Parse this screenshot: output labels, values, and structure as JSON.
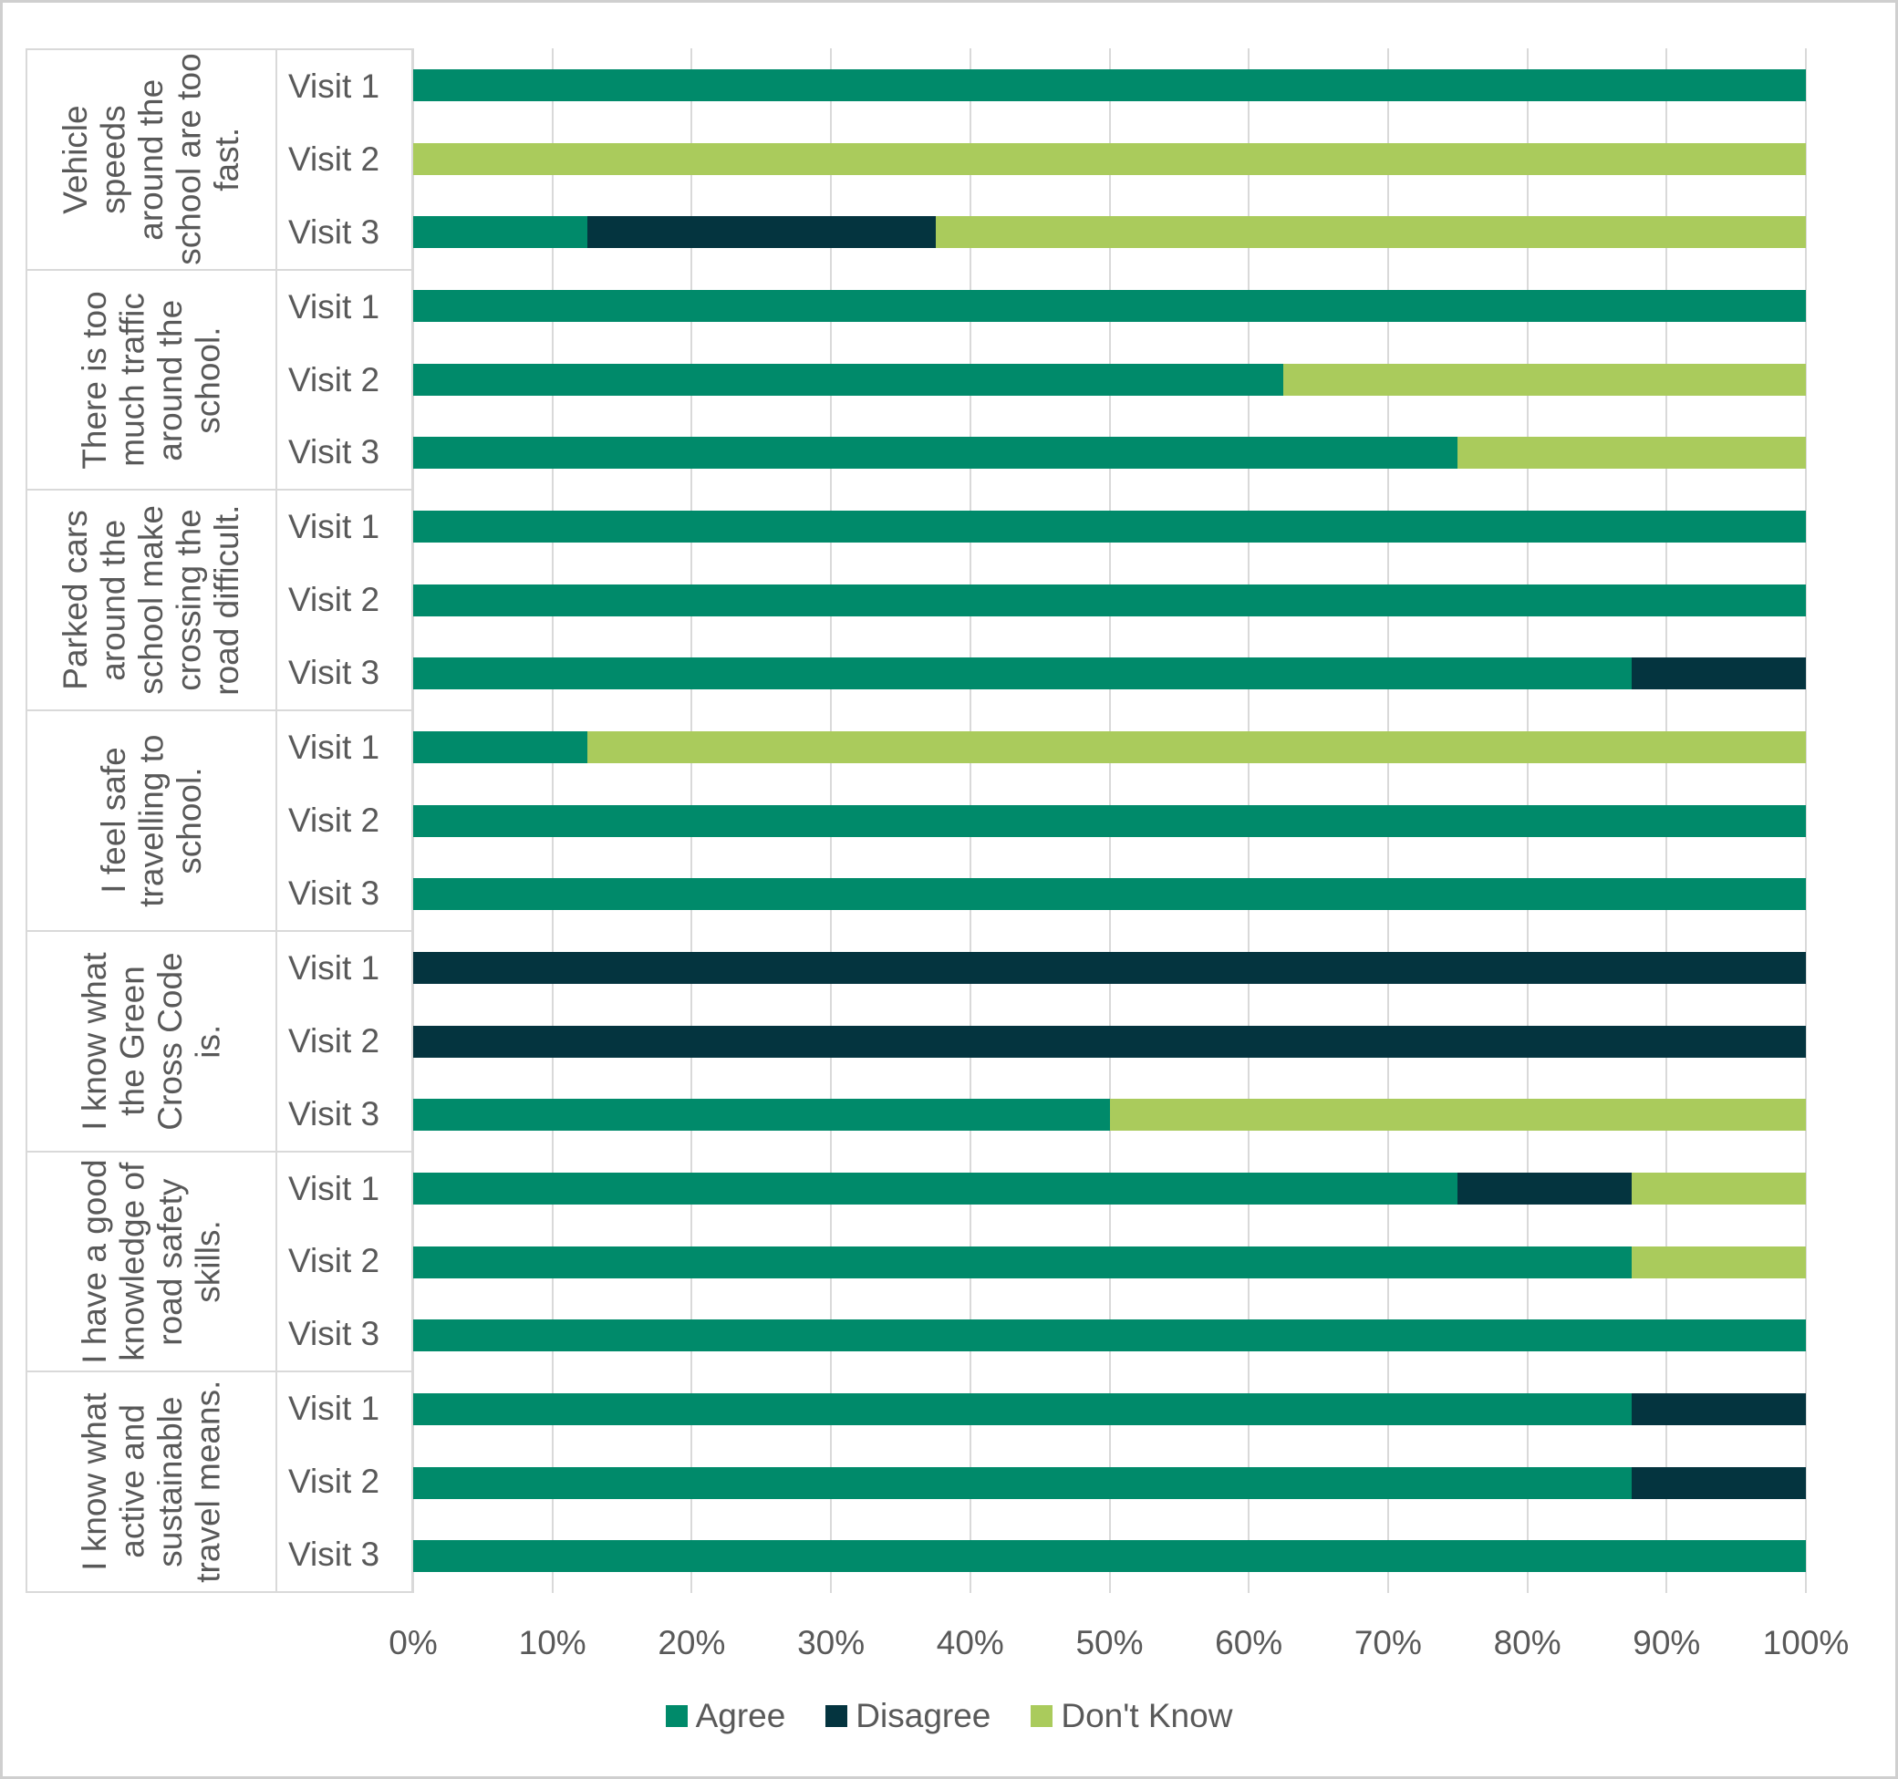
{
  "colors": {
    "agree": "#008A6A",
    "disagree": "#04343F",
    "dont_know": "#AACB5C",
    "grid": "#D9D9D9",
    "text": "#595959"
  },
  "legend": [
    {
      "key": "agree",
      "label": "Agree"
    },
    {
      "key": "disagree",
      "label": "Disagree"
    },
    {
      "key": "dont_know",
      "label": "Don't Know"
    }
  ],
  "x_axis": {
    "ticks": [
      "0%",
      "10%",
      "20%",
      "30%",
      "40%",
      "50%",
      "60%",
      "70%",
      "80%",
      "90%",
      "100%"
    ],
    "min": 0,
    "max": 100
  },
  "chart_data": {
    "type": "bar",
    "stacked": true,
    "orientation": "horizontal",
    "units": "percent",
    "series_names": [
      "Agree",
      "Disagree",
      "Don't Know"
    ],
    "xlim": [
      0,
      100
    ],
    "grid": true,
    "legend_position": "bottom",
    "groups": [
      {
        "label": "Vehicle speeds around the school are too fast.",
        "rows": [
          {
            "visit": "Visit 1",
            "agree": 100,
            "disagree": 0,
            "dont_know": 0
          },
          {
            "visit": "Visit 2",
            "agree": 0,
            "disagree": 0,
            "dont_know": 100
          },
          {
            "visit": "Visit 3",
            "agree": 12.5,
            "disagree": 25,
            "dont_know": 62.5
          }
        ]
      },
      {
        "label": "There is too much traffic around the school.",
        "rows": [
          {
            "visit": "Visit 1",
            "agree": 100,
            "disagree": 0,
            "dont_know": 0
          },
          {
            "visit": "Visit 2",
            "agree": 62.5,
            "disagree": 0,
            "dont_know": 37.5
          },
          {
            "visit": "Visit 3",
            "agree": 75,
            "disagree": 0,
            "dont_know": 25
          }
        ]
      },
      {
        "label": "Parked cars around the school make crossing the road difficult.",
        "rows": [
          {
            "visit": "Visit 1",
            "agree": 100,
            "disagree": 0,
            "dont_know": 0
          },
          {
            "visit": "Visit 2",
            "agree": 100,
            "disagree": 0,
            "dont_know": 0
          },
          {
            "visit": "Visit 3",
            "agree": 87.5,
            "disagree": 12.5,
            "dont_know": 0
          }
        ]
      },
      {
        "label": "I feel safe travelling to school.",
        "rows": [
          {
            "visit": "Visit 1",
            "agree": 12.5,
            "disagree": 0,
            "dont_know": 87.5
          },
          {
            "visit": "Visit 2",
            "agree": 100,
            "disagree": 0,
            "dont_know": 0
          },
          {
            "visit": "Visit 3",
            "agree": 100,
            "disagree": 0,
            "dont_know": 0
          }
        ]
      },
      {
        "label": "I know what the Green Cross Code is.",
        "rows": [
          {
            "visit": "Visit 1",
            "agree": 0,
            "disagree": 100,
            "dont_know": 0
          },
          {
            "visit": "Visit 2",
            "agree": 0,
            "disagree": 100,
            "dont_know": 0
          },
          {
            "visit": "Visit 3",
            "agree": 50,
            "disagree": 0,
            "dont_know": 50
          }
        ]
      },
      {
        "label": "I have a good knowledge of road safety skills.",
        "rows": [
          {
            "visit": "Visit 1",
            "agree": 75,
            "disagree": 12.5,
            "dont_know": 12.5
          },
          {
            "visit": "Visit 2",
            "agree": 87.5,
            "disagree": 0,
            "dont_know": 12.5
          },
          {
            "visit": "Visit 3",
            "agree": 100,
            "disagree": 0,
            "dont_know": 0
          }
        ]
      },
      {
        "label": "I know what active and sustainable travel means.",
        "rows": [
          {
            "visit": "Visit 1",
            "agree": 87.5,
            "disagree": 12.5,
            "dont_know": 0
          },
          {
            "visit": "Visit 2",
            "agree": 87.5,
            "disagree": 12.5,
            "dont_know": 0
          },
          {
            "visit": "Visit 3",
            "agree": 100,
            "disagree": 0,
            "dont_know": 0
          }
        ]
      }
    ]
  }
}
